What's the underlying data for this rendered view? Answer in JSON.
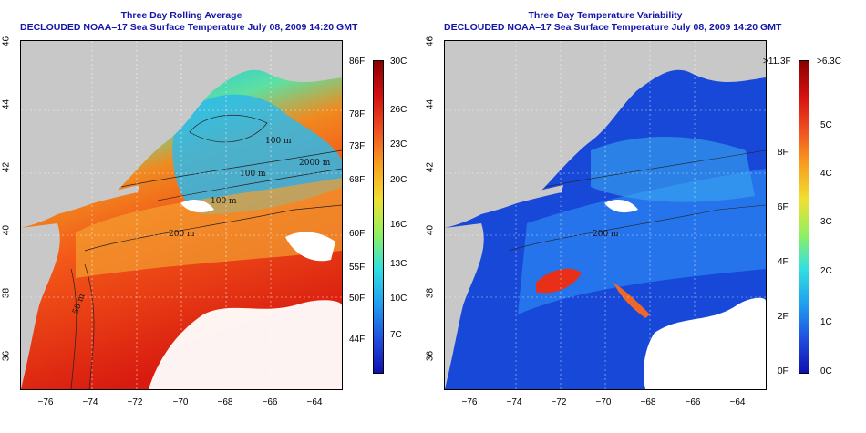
{
  "left_panel": {
    "title_line1": "Three Day Rolling Average",
    "title_line2": "DECLOUDED NOAA–17 Sea Surface Temperature July 08, 2009 14:20 GMT",
    "x_ticks": [
      "−76",
      "−74",
      "−72",
      "−70",
      "−68",
      "−66",
      "−64"
    ],
    "y_ticks": [
      "46",
      "44",
      "42",
      "40",
      "38",
      "36"
    ],
    "contour_labels": [
      "100 m",
      "2000 m",
      "100 m",
      "100 m",
      "200 m",
      "50 m"
    ],
    "colorbar": {
      "fahrenheit": [
        "86F",
        "78F",
        "73F",
        "68F",
        "60F",
        "55F",
        "50F",
        "44F"
      ],
      "celsius": [
        "30C",
        "26C",
        "23C",
        "20C",
        "16C",
        "13C",
        "10C",
        "7C"
      ]
    }
  },
  "right_panel": {
    "title_line1": "Three Day Temperature Variability",
    "title_line2": "DECLOUDED NOAA–17 Sea Surface Temperature July 08, 2009 14:20 GMT",
    "x_ticks": [
      "−76",
      "−74",
      "−72",
      "−70",
      "−68",
      "−66",
      "−64"
    ],
    "y_ticks": [
      "46",
      "44",
      "42",
      "40",
      "38",
      "36"
    ],
    "contour_labels": [
      "200 m"
    ],
    "colorbar": {
      "fahrenheit": [
        ">11.3F",
        "8F",
        "6F",
        "4F",
        "2F",
        "0F"
      ],
      "celsius": [
        ">6.3C",
        "5C",
        "4C",
        "3C",
        "2C",
        "1C",
        "0C"
      ]
    }
  },
  "colors": {
    "title": "#1515a8",
    "land": "#c8c8c8",
    "cloud": "#ffffff"
  }
}
